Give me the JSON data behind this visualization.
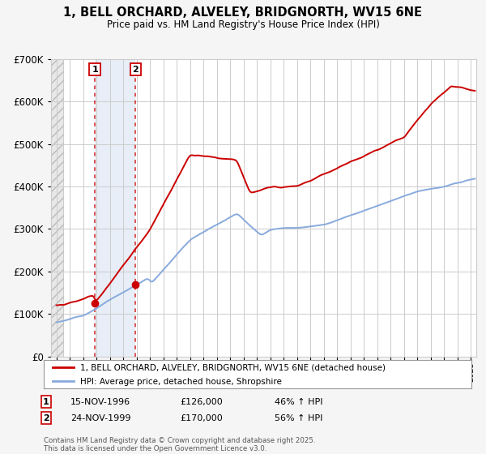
{
  "title": "1, BELL ORCHARD, ALVELEY, BRIDGNORTH, WV15 6NE",
  "subtitle": "Price paid vs. HM Land Registry's House Price Index (HPI)",
  "red_line_label": "1, BELL ORCHARD, ALVELEY, BRIDGNORTH, WV15 6NE (detached house)",
  "blue_line_label": "HPI: Average price, detached house, Shropshire",
  "sales": [
    {
      "num": 1,
      "date": "15-NOV-1996",
      "price": 126000,
      "hpi_change": "46% ↑ HPI",
      "year": 1996.88
    },
    {
      "num": 2,
      "date": "24-NOV-1999",
      "price": 170000,
      "hpi_change": "56% ↑ HPI",
      "year": 1999.92
    }
  ],
  "footnote": "Contains HM Land Registry data © Crown copyright and database right 2025.\nThis data is licensed under the Open Government Licence v3.0.",
  "xmin": 1993.6,
  "xmax": 2025.4,
  "ymin": 0,
  "ymax": 700000,
  "hatch_xmin": 1993.6,
  "hatch_xmax": 1994.5,
  "blue_shade_xmin": 1996.88,
  "blue_shade_xmax": 1999.92,
  "red_color": "#cc0000",
  "blue_color": "#88aadd",
  "blue_shade_color": "#dde8f5",
  "hatch_color": "#e0e0e0",
  "background_color": "#f5f5f5",
  "plot_bg_color": "#ffffff",
  "grid_color": "#cccccc"
}
